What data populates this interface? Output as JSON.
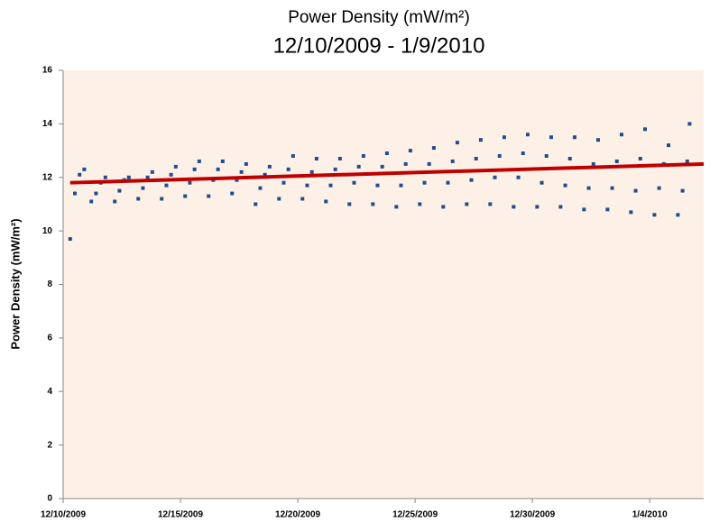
{
  "chart_data": {
    "type": "scatter",
    "subtitle": "Power Density (mW/m²)",
    "date_range": "12/10/2009 - 1/9/2010",
    "y_label": "Power Density (mW/m²)",
    "xlim": [
      0,
      27.3
    ],
    "xticks": [
      {
        "value": 0,
        "label": "12/10/2009"
      },
      {
        "value": 5,
        "label": "12/15/2009"
      },
      {
        "value": 10,
        "label": "12/20/2009"
      },
      {
        "value": 15,
        "label": "12/25/2009"
      },
      {
        "value": 20,
        "label": "12/30/2009"
      },
      {
        "value": 25,
        "label": "1/4/2010"
      }
    ],
    "ylim": [
      0,
      16
    ],
    "yticks": [
      0,
      2,
      4,
      6,
      8,
      10,
      12,
      14,
      16
    ],
    "grid": false,
    "series": [
      {
        "color": "#1f4e8c",
        "x": [
          0.3,
          0.5,
          0.7,
          0.9,
          1.2,
          1.4,
          1.6,
          1.8,
          2.2,
          2.4,
          2.6,
          2.8,
          3.2,
          3.4,
          3.6,
          3.8,
          4.2,
          4.4,
          4.6,
          4.8,
          5.2,
          5.4,
          5.6,
          5.8,
          6.2,
          6.4,
          6.6,
          6.8,
          7.2,
          7.4,
          7.6,
          7.8,
          8.2,
          8.4,
          8.6,
          8.8,
          9.2,
          9.4,
          9.6,
          9.8,
          10.2,
          10.4,
          10.6,
          10.8,
          11.2,
          11.4,
          11.6,
          11.8,
          12.2,
          12.4,
          12.6,
          12.8,
          13.2,
          13.4,
          13.6,
          13.8,
          14.2,
          14.4,
          14.6,
          14.8,
          15.2,
          15.4,
          15.6,
          15.8,
          16.2,
          16.4,
          16.6,
          16.8,
          17.2,
          17.4,
          17.6,
          17.8,
          18.2,
          18.4,
          18.6,
          18.8,
          19.2,
          19.4,
          19.6,
          19.8,
          20.2,
          20.4,
          20.6,
          20.8,
          21.2,
          21.4,
          21.6,
          21.8,
          22.2,
          22.4,
          22.6,
          22.8,
          23.2,
          23.4,
          23.6,
          23.8,
          24.2,
          24.4,
          24.6,
          24.8,
          25.2,
          25.4,
          25.6,
          25.8,
          26.2,
          26.4,
          26.6,
          26.7
        ],
        "values": [
          9.7,
          11.4,
          12.1,
          12.3,
          11.1,
          11.4,
          11.8,
          12.0,
          11.1,
          11.5,
          11.9,
          12.0,
          11.2,
          11.6,
          12.0,
          12.2,
          11.2,
          11.7,
          12.1,
          12.4,
          11.3,
          11.8,
          12.3,
          12.6,
          11.3,
          11.9,
          12.3,
          12.6,
          11.4,
          11.9,
          12.2,
          12.5,
          11.0,
          11.6,
          12.1,
          12.4,
          11.2,
          11.8,
          12.3,
          12.8,
          11.2,
          11.7,
          12.2,
          12.7,
          11.1,
          11.7,
          12.3,
          12.7,
          11.0,
          11.8,
          12.4,
          12.8,
          11.0,
          11.7,
          12.4,
          12.9,
          10.9,
          11.7,
          12.5,
          13.0,
          11.0,
          11.8,
          12.5,
          13.1,
          10.9,
          11.8,
          12.6,
          13.3,
          11.0,
          11.9,
          12.7,
          13.4,
          11.0,
          12.0,
          12.8,
          13.5,
          10.9,
          12.0,
          12.9,
          13.6,
          10.9,
          11.8,
          12.8,
          13.5,
          10.9,
          11.7,
          12.7,
          13.5,
          10.8,
          11.6,
          12.5,
          13.4,
          10.8,
          11.6,
          12.6,
          13.6,
          10.7,
          11.5,
          12.7,
          13.8,
          10.6,
          11.6,
          12.5,
          13.2,
          10.6,
          11.5,
          12.6,
          14.0
        ]
      }
    ],
    "trendline": {
      "color": "#c00000",
      "x": [
        0.3,
        27.3
      ],
      "values": [
        11.8,
        12.5
      ]
    }
  }
}
